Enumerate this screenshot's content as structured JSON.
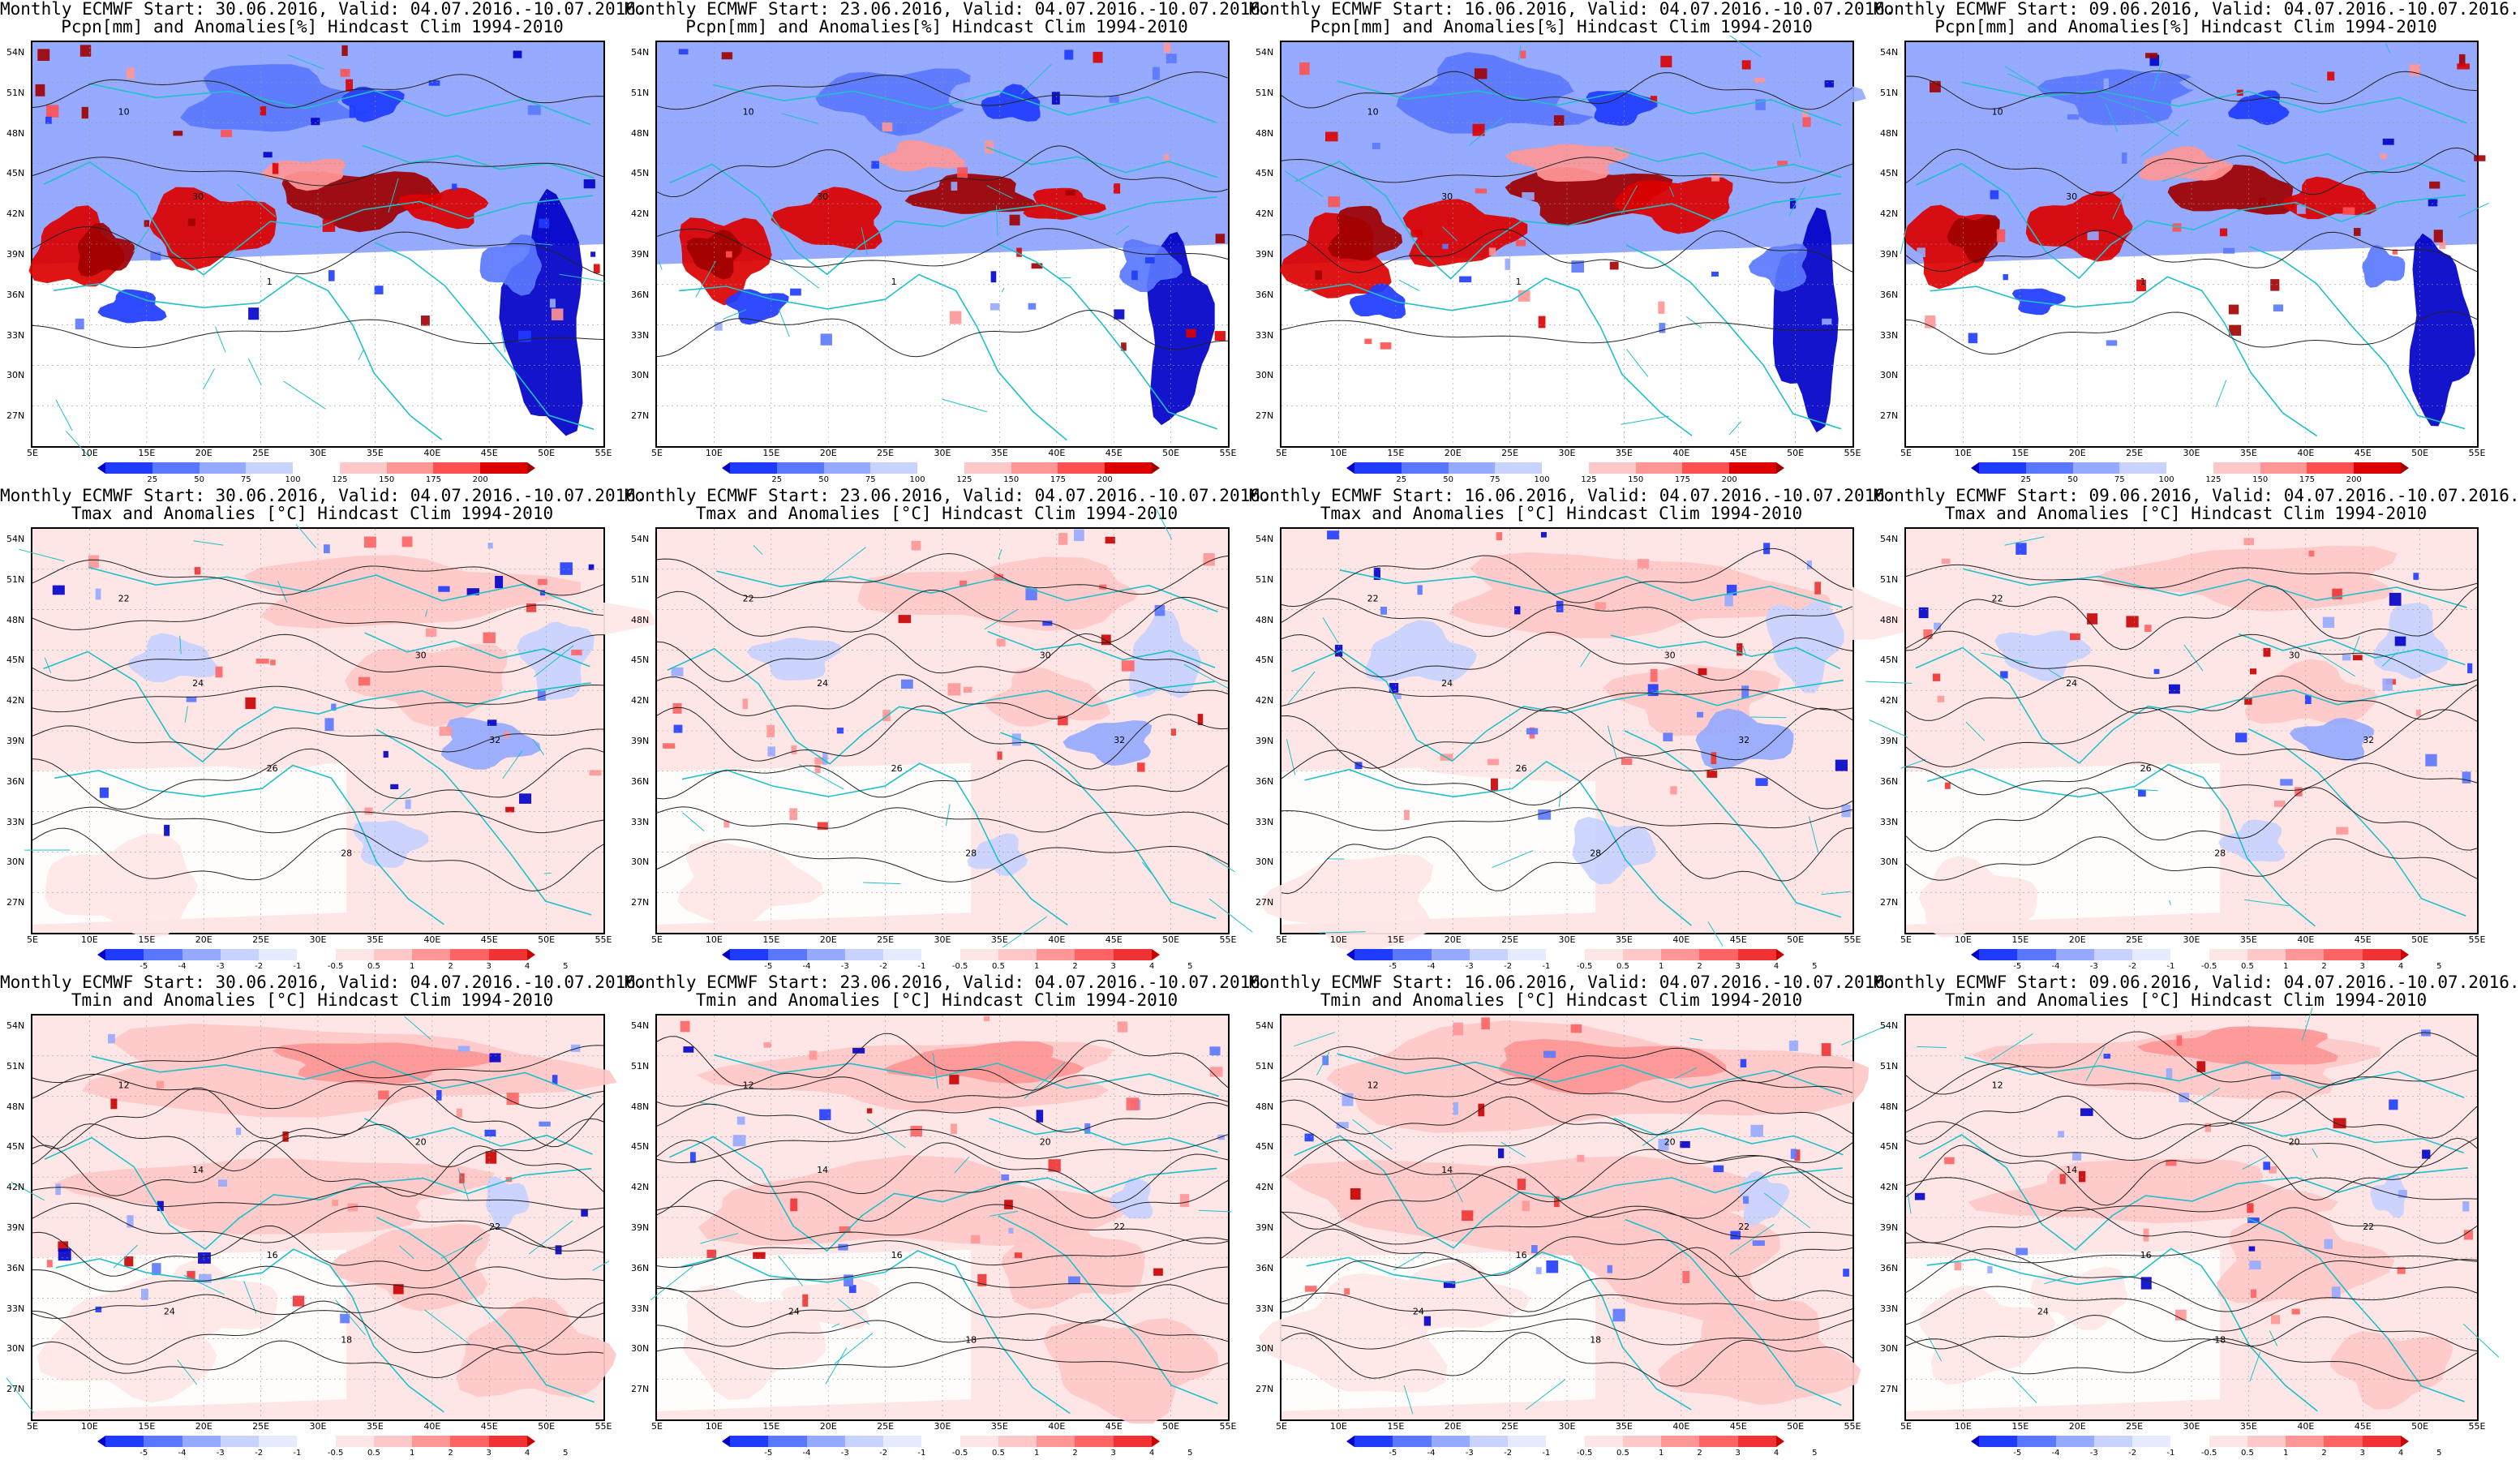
{
  "columns": [
    {
      "start": "30.06.2016"
    },
    {
      "start": "23.06.2016"
    },
    {
      "start": "16.06.2016"
    },
    {
      "start": "09.06.2016"
    }
  ],
  "valid": "04.07.2016.-10.07.2016.",
  "rows": [
    {
      "kind": "precip",
      "title2": "Pcpn[mm] and Anomalies[%] Hindcast Clim 1994-2010",
      "colors": [
        "#0000c8",
        "#1e3cff",
        "#5a78ff",
        "#96aaff",
        "#c8d2ff",
        "#ffffff",
        "#ffc8c8",
        "#ff9696",
        "#ff5050",
        "#dc0000",
        "#a00000"
      ],
      "ticks": [
        "25",
        "50",
        "75",
        "100",
        "125",
        "150",
        "175",
        "200"
      ],
      "contour_labels": [
        "10",
        "30",
        "1"
      ]
    },
    {
      "kind": "tmax",
      "title2": "Tmax and Anomalies [°C] Hindcast Clim 1994-2010",
      "colors": [
        "#0000c8",
        "#1e3cff",
        "#5a78ff",
        "#96aaff",
        "#c8d2ff",
        "#e6ebff",
        "#ffffff",
        "#ffe6e6",
        "#ffc8c8",
        "#ff9696",
        "#ff6464",
        "#f03232",
        "#c80000"
      ],
      "ticks": [
        "-5",
        "-4",
        "-3",
        "-2",
        "-1",
        "-0.5",
        "0.5",
        "1",
        "2",
        "3",
        "4",
        "5"
      ],
      "contour_labels": [
        "22",
        "24",
        "26",
        "28",
        "30",
        "32"
      ]
    },
    {
      "kind": "tmin",
      "title2": "Tmin and Anomalies [°C] Hindcast Clim 1994-2010",
      "colors": [
        "#0000c8",
        "#1e3cff",
        "#5a78ff",
        "#96aaff",
        "#c8d2ff",
        "#e6ebff",
        "#ffffff",
        "#ffe6e6",
        "#ffc8c8",
        "#ff9696",
        "#ff6464",
        "#f03232",
        "#c80000"
      ],
      "ticks": [
        "-5",
        "-4",
        "-3",
        "-2",
        "-1",
        "-0.5",
        "0.5",
        "1",
        "2",
        "3",
        "4",
        "5"
      ],
      "contour_labels": [
        "12",
        "14",
        "16",
        "18",
        "20",
        "22",
        "24"
      ]
    }
  ],
  "lat_labels": [
    "54N",
    "51N",
    "48N",
    "45N",
    "42N",
    "39N",
    "36N",
    "33N",
    "30N",
    "27N"
  ],
  "lon_labels": [
    "5E",
    "10E",
    "15E",
    "20E",
    "25E",
    "30E",
    "35E",
    "40E",
    "45E",
    "50E",
    "55E"
  ],
  "title_prefix": "Monthly ECMWF Start: ",
  "title_mid": ", Valid: "
}
